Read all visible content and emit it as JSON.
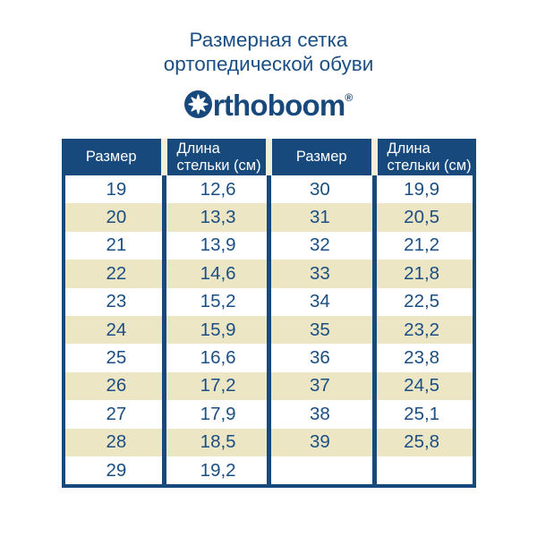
{
  "header": {
    "title_line1": "Размерная сетка",
    "title_line2": "ортопедической обуви",
    "brand_rest": "rthoboom",
    "registered": "®",
    "brand_icon": "star-in-circle-icon"
  },
  "colors": {
    "primary_blue": "#17497c",
    "text_blue": "#1b4e83",
    "stripe_cream": "#ede6c5",
    "header_gap": "#f3eeda",
    "background": "#ffffff"
  },
  "table": {
    "headers": [
      "Размер",
      "Длина стельки (см)",
      "Размер",
      "Длина стельки (см)"
    ],
    "rows": [
      [
        "19",
        "12,6",
        "30",
        "19,9"
      ],
      [
        "20",
        "13,3",
        "31",
        "20,5"
      ],
      [
        "21",
        "13,9",
        "32",
        "21,2"
      ],
      [
        "22",
        "14,6",
        "33",
        "21,8"
      ],
      [
        "23",
        "15,2",
        "34",
        "22,5"
      ],
      [
        "24",
        "15,9",
        "35",
        "23,2"
      ],
      [
        "25",
        "16,6",
        "36",
        "23,8"
      ],
      [
        "26",
        "17,2",
        "37",
        "24,5"
      ],
      [
        "27",
        "17,9",
        "38",
        "25,1"
      ],
      [
        "28",
        "18,5",
        "39",
        "25,8"
      ],
      [
        "29",
        "19,2",
        "",
        ""
      ]
    ]
  },
  "chart_data": {
    "type": "table",
    "title": "Размерная сетка ортопедической обуви",
    "brand": "Orthoboom®",
    "columns": [
      "Размер",
      "Длина стельки (см)",
      "Размер",
      "Длина стельки (см)"
    ],
    "rows": [
      [
        "19",
        "12,6",
        "30",
        "19,9"
      ],
      [
        "20",
        "13,3",
        "31",
        "20,5"
      ],
      [
        "21",
        "13,9",
        "32",
        "21,2"
      ],
      [
        "22",
        "14,6",
        "33",
        "21,8"
      ],
      [
        "23",
        "15,2",
        "34",
        "22,5"
      ],
      [
        "24",
        "15,9",
        "35",
        "23,2"
      ],
      [
        "25",
        "16,6",
        "36",
        "23,8"
      ],
      [
        "26",
        "17,2",
        "37",
        "24,5"
      ],
      [
        "27",
        "17,9",
        "38",
        "25,1"
      ],
      [
        "28",
        "18,5",
        "39",
        "25,8"
      ],
      [
        "29",
        "19,2",
        "",
        ""
      ]
    ],
    "size_to_insole_cm": {
      "19": 12.6,
      "20": 13.3,
      "21": 13.9,
      "22": 14.6,
      "23": 15.2,
      "24": 15.9,
      "25": 16.6,
      "26": 17.2,
      "27": 17.9,
      "28": 18.5,
      "29": 19.2,
      "30": 19.9,
      "31": 20.5,
      "32": 21.2,
      "33": 21.8,
      "34": 22.5,
      "35": 23.2,
      "36": 23.8,
      "37": 24.5,
      "38": 25.1,
      "39": 25.8
    },
    "layout_hints": {
      "stripe_pattern": "alternating white/cream rows",
      "column_groups": 2,
      "header_background": "#17497c"
    }
  }
}
